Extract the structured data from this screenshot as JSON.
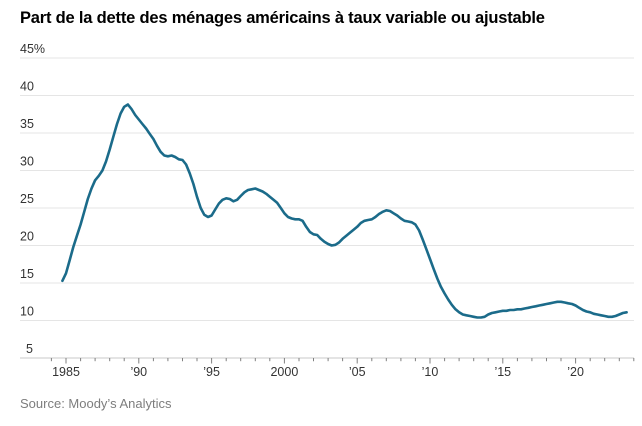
{
  "colors": {
    "line": "#1b6b8a",
    "grid": "#e5e5e5",
    "axis": "#c9c9c9",
    "tick": "#808080",
    "label": "#333333",
    "title": "#000000",
    "source": "#7d7d7d",
    "background": "#ffffff"
  },
  "chart_data": {
    "type": "line",
    "title": "Part de la dette des ménages américains à taux variable ou ajustable",
    "source": "Source: Moody’s Analytics",
    "unit": "percent",
    "grid": true,
    "legend": "none",
    "line_color": "#1b6b8a",
    "ylim": [
      5,
      45
    ],
    "ytick_values": [
      45,
      40,
      35,
      30,
      25,
      20,
      15,
      10,
      5
    ],
    "ytick_labels": [
      "45%",
      "40",
      "35",
      "30",
      "25",
      "20",
      "15",
      "10",
      "5"
    ],
    "x_axis": {
      "first_year": 1984,
      "last_year": 2024,
      "minor_tick_every": 1,
      "major_tick_every": 5,
      "major_labels": [
        {
          "year": 1985,
          "label": "1985"
        },
        {
          "year": 1990,
          "label": "’90"
        },
        {
          "year": 1995,
          "label": "’95"
        },
        {
          "year": 2000,
          "label": "2000"
        },
        {
          "year": 2005,
          "label": "’05"
        },
        {
          "year": 2010,
          "label": "’10"
        },
        {
          "year": 2015,
          "label": "’15"
        },
        {
          "year": 2020,
          "label": "’20"
        }
      ]
    },
    "series": [
      {
        "name": "Part de la dette des ménages américains à taux variable ou ajustable",
        "x_start": 1984.75,
        "x_step": 0.25,
        "x_end": 2023.5,
        "values": [
          15.3,
          16.3,
          18.0,
          19.8,
          21.3,
          22.8,
          24.5,
          26.2,
          27.6,
          28.7,
          29.3,
          30.0,
          31.2,
          32.8,
          34.5,
          36.2,
          37.6,
          38.5,
          38.8,
          38.2,
          37.4,
          36.8,
          36.2,
          35.6,
          34.9,
          34.2,
          33.3,
          32.5,
          32.0,
          31.9,
          32.0,
          31.8,
          31.5,
          31.4,
          30.8,
          29.6,
          28.2,
          26.5,
          25.0,
          24.1,
          23.8,
          24.0,
          24.8,
          25.6,
          26.1,
          26.3,
          26.2,
          25.9,
          26.1,
          26.6,
          27.1,
          27.4,
          27.5,
          27.6,
          27.4,
          27.2,
          26.9,
          26.5,
          26.1,
          25.7,
          25.0,
          24.3,
          23.8,
          23.6,
          23.5,
          23.5,
          23.3,
          22.5,
          21.8,
          21.5,
          21.4,
          20.9,
          20.5,
          20.2,
          20.0,
          20.1,
          20.4,
          20.9,
          21.3,
          21.7,
          22.1,
          22.5,
          23.0,
          23.3,
          23.4,
          23.5,
          23.8,
          24.2,
          24.5,
          24.7,
          24.6,
          24.3,
          24.0,
          23.6,
          23.3,
          23.2,
          23.1,
          22.8,
          22.0,
          20.8,
          19.5,
          18.2,
          16.9,
          15.6,
          14.5,
          13.6,
          12.8,
          12.1,
          11.5,
          11.1,
          10.8,
          10.7,
          10.6,
          10.5,
          10.4,
          10.4,
          10.5,
          10.8,
          11.0,
          11.1,
          11.2,
          11.3,
          11.3,
          11.4,
          11.4,
          11.5,
          11.5,
          11.6,
          11.7,
          11.8,
          11.9,
          12.0,
          12.1,
          12.2,
          12.3,
          12.4,
          12.5,
          12.5,
          12.4,
          12.3,
          12.2,
          12.0,
          11.7,
          11.4,
          11.2,
          11.1,
          10.9,
          10.8,
          10.7,
          10.6,
          10.5,
          10.5,
          10.6,
          10.8,
          11.0,
          11.1
        ]
      }
    ]
  }
}
